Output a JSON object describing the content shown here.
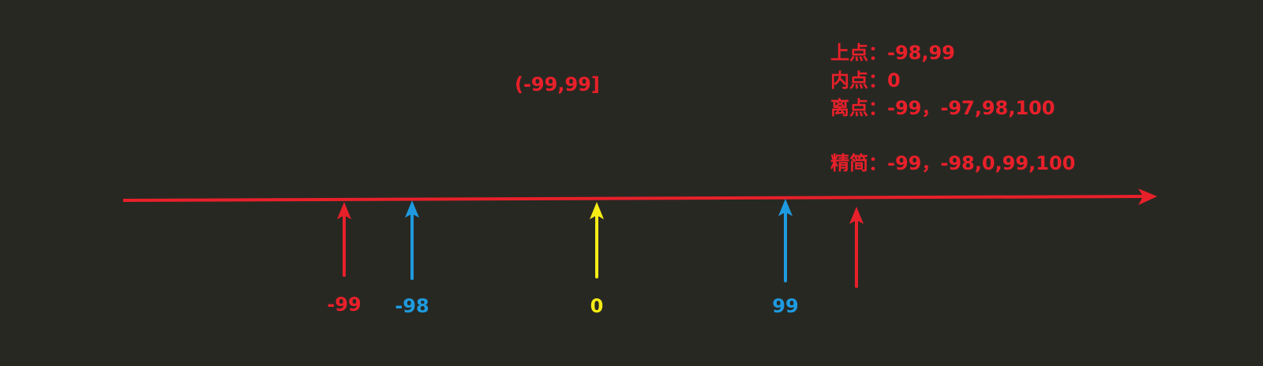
{
  "colors": {
    "background": "#282823",
    "axis": "#e8202a",
    "boundary_off": "#e8202a",
    "boundary_on": "#1e9be0",
    "inner": "#f5ec16",
    "text": "#e8202a"
  },
  "interval": "(-99,99]",
  "notes": {
    "on_points": "上点：-98,99",
    "inner_point": "内点：0",
    "off_points": "离点：-99，-97,98,100",
    "simplified": "精简：-99，-98,0,99,100"
  },
  "markers": [
    {
      "label": "-99",
      "kind": "boundary_off"
    },
    {
      "label": "-98",
      "kind": "boundary_on"
    },
    {
      "label": "0",
      "kind": "inner"
    },
    {
      "label": "99",
      "kind": "boundary_on"
    },
    {
      "label": "",
      "kind": "boundary_off"
    }
  ]
}
